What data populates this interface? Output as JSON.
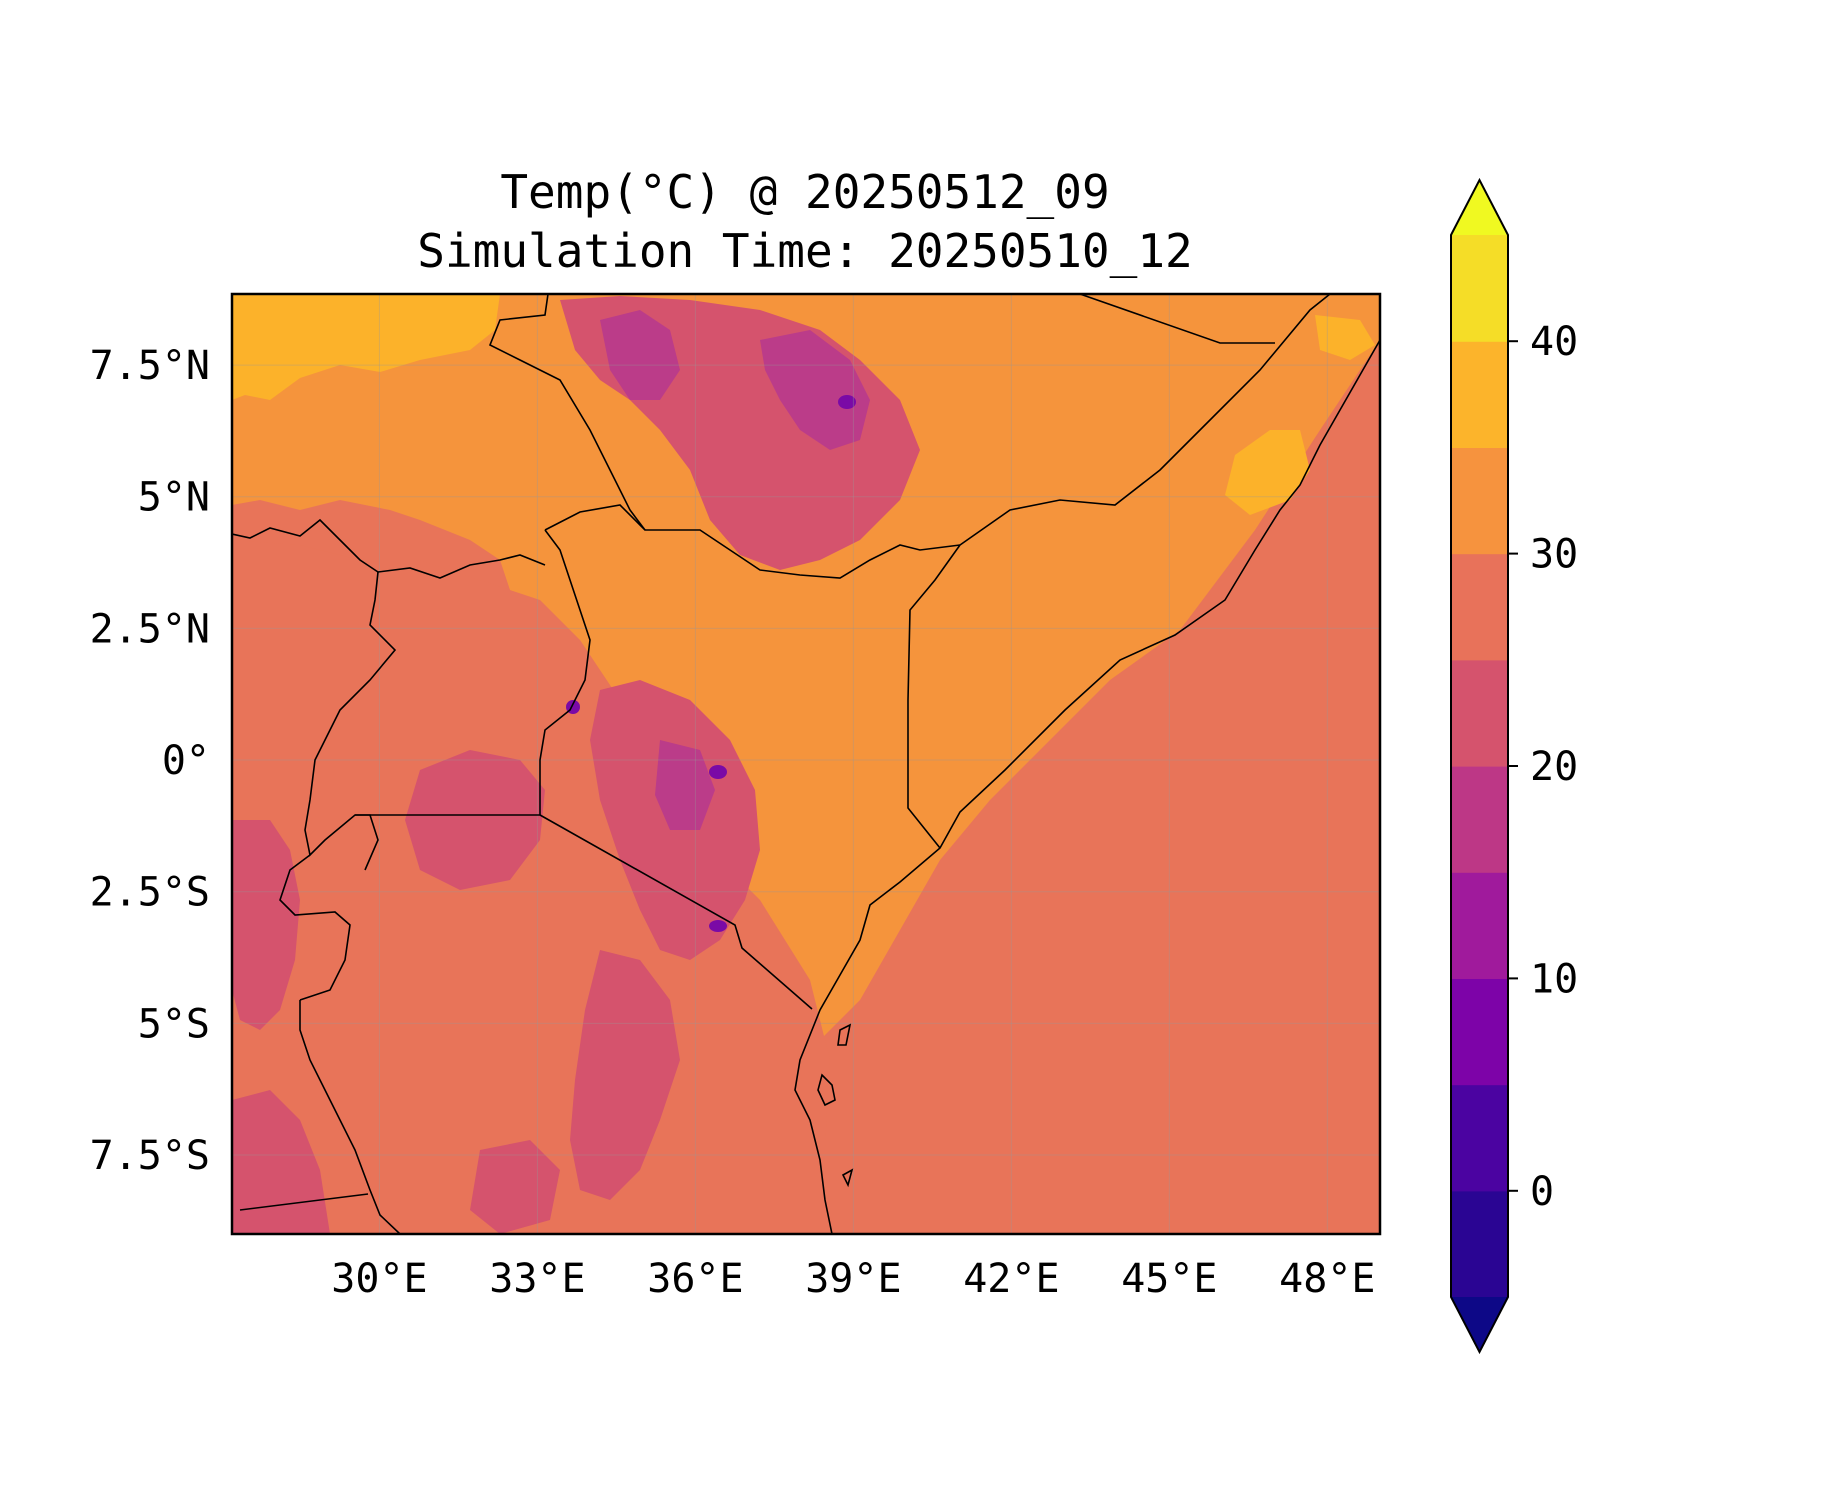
{
  "title_line1": "Temp(°C) @ 20250512_09",
  "title_line2": "Simulation Time: 20250510_12",
  "map": {
    "lon_range": [
      27.2,
      49.0
    ],
    "lat_range": [
      -9.0,
      8.85
    ],
    "x_ticks": [
      {
        "value": 30,
        "label": "30°E"
      },
      {
        "value": 33,
        "label": "33°E"
      },
      {
        "value": 36,
        "label": "36°E"
      },
      {
        "value": 39,
        "label": "39°E"
      },
      {
        "value": 42,
        "label": "42°E"
      },
      {
        "value": 45,
        "label": "45°E"
      },
      {
        "value": 48,
        "label": "48°E"
      }
    ],
    "y_ticks": [
      {
        "value": 7.5,
        "label": "7.5°N"
      },
      {
        "value": 5,
        "label": "5°N"
      },
      {
        "value": 2.5,
        "label": "2.5°N"
      },
      {
        "value": 0,
        "label": "0°"
      },
      {
        "value": -2.5,
        "label": "2.5°S"
      },
      {
        "value": -5,
        "label": "5°S"
      },
      {
        "value": -7.5,
        "label": "7.5°S"
      }
    ],
    "gridlines": true,
    "colors": {
      "ocean": "#e87459",
      "warm_land": "#f5943c",
      "hot": "#fcb22a",
      "highland": "#d5536d",
      "cool_highland": "#bb3c89",
      "peak": "#7a0aa6",
      "border": "#000000"
    }
  },
  "colorbar": {
    "levels": [
      -5,
      0,
      5,
      10,
      15,
      20,
      25,
      30,
      35,
      40,
      45
    ],
    "colors": [
      "#2a0593",
      "#4b03a1",
      "#7d03a8",
      "#a01a9c",
      "#bd3786",
      "#d5536d",
      "#e8725a",
      "#f6933e",
      "#fcb42b",
      "#f5dd27"
    ],
    "under_color": "#0d0887",
    "over_color": "#f0f921",
    "ticks": [
      {
        "value": 0,
        "label": "0"
      },
      {
        "value": 10,
        "label": "10"
      },
      {
        "value": 20,
        "label": "20"
      },
      {
        "value": 30,
        "label": "30"
      },
      {
        "value": 40,
        "label": "40"
      }
    ]
  }
}
